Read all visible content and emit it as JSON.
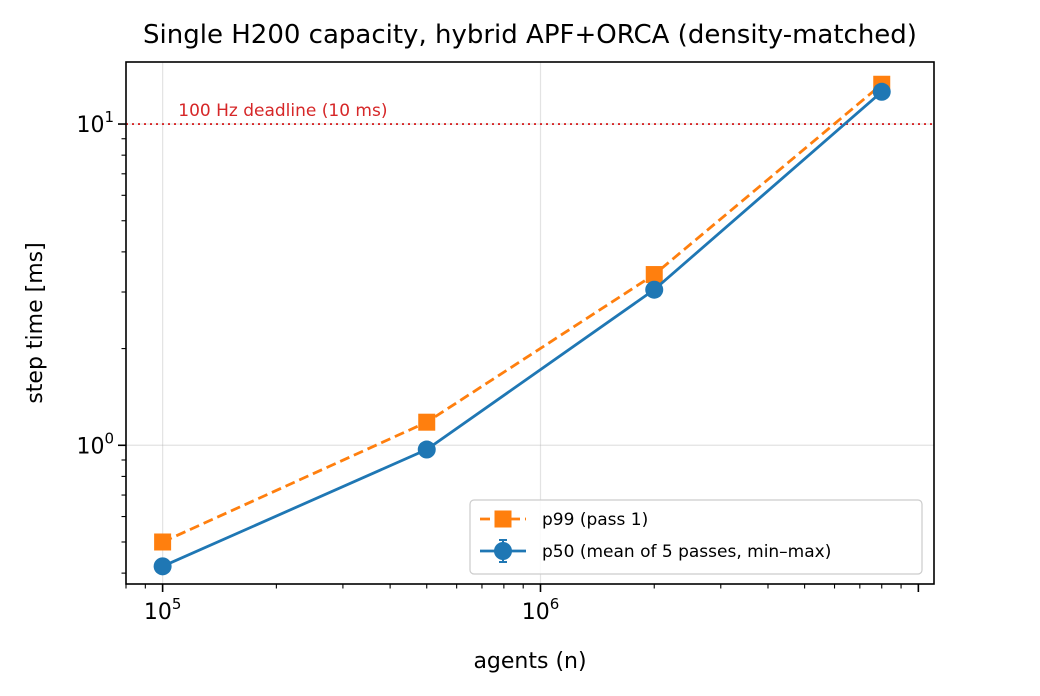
{
  "chart_data": {
    "type": "line",
    "title": "Single H200 capacity, hybrid APF+ORCA (density-matched)",
    "xlabel": "agents (n)",
    "ylabel": "step time [ms]",
    "xscale": "log",
    "yscale": "log",
    "xlim": [
      80000,
      11000000
    ],
    "ylim": [
      0.37,
      15.6
    ],
    "x": [
      100000,
      500000,
      2000000,
      8000000
    ],
    "x_tick_labels": [
      {
        "base": "10",
        "exp": "5",
        "value": 100000
      },
      {
        "base": "10",
        "exp": "6",
        "value": 1000000
      }
    ],
    "y_tick_labels": [
      {
        "base": "10",
        "exp": "0",
        "value": 1
      },
      {
        "base": "10",
        "exp": "1",
        "value": 10
      }
    ],
    "grid": true,
    "legend_position": "lower-right",
    "series": [
      {
        "name": "p99 (pass 1)",
        "values": [
          0.5,
          1.18,
          3.4,
          13.3
        ],
        "color": "#ff7f0e",
        "linestyle": "dashed",
        "marker": "square"
      },
      {
        "name": "p50 (mean of 5 passes, min–max)",
        "values": [
          0.42,
          0.97,
          3.05,
          12.6
        ],
        "color": "#1f77b4",
        "linestyle": "solid",
        "marker": "circle",
        "errorbars": true
      }
    ],
    "reference_line": {
      "y": 10,
      "label": "100 Hz deadline (10 ms)",
      "color": "#d62728",
      "linestyle": "dotted"
    }
  }
}
